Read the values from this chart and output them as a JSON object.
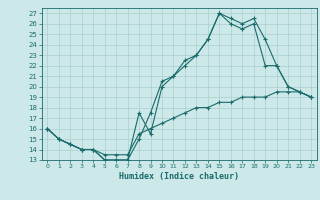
{
  "xlabel": "Humidex (Indice chaleur)",
  "xlim": [
    -0.5,
    23.5
  ],
  "ylim": [
    13,
    27.5
  ],
  "xticks": [
    0,
    1,
    2,
    3,
    4,
    5,
    6,
    7,
    8,
    9,
    10,
    11,
    12,
    13,
    14,
    15,
    16,
    17,
    18,
    19,
    20,
    21,
    22,
    23
  ],
  "yticks": [
    13,
    14,
    15,
    16,
    17,
    18,
    19,
    20,
    21,
    22,
    23,
    24,
    25,
    26,
    27
  ],
  "bg_color": "#cce8e8",
  "grid_color": "#aacfcf",
  "line_color": "#1a6b6b",
  "line1_x": [
    0,
    1,
    2,
    3,
    4,
    5,
    6,
    7,
    8,
    9,
    10,
    11,
    12,
    13,
    14,
    15,
    16,
    17,
    18,
    19,
    20,
    21,
    22,
    23
  ],
  "line1_y": [
    16,
    15,
    14.5,
    14,
    14,
    13,
    13,
    13,
    15,
    17.5,
    20.5,
    21,
    22,
    23,
    24.5,
    27,
    26.5,
    26,
    26.5,
    24.5,
    22,
    20,
    19.5,
    19
  ],
  "line2_x": [
    0,
    1,
    2,
    3,
    4,
    5,
    6,
    7,
    8,
    9,
    10,
    11,
    12,
    13,
    14,
    15,
    16,
    17,
    18,
    19,
    20,
    21,
    22,
    23
  ],
  "line2_y": [
    16,
    15,
    14.5,
    14,
    14,
    13.5,
    13.5,
    13.5,
    15.5,
    16,
    16.5,
    17,
    17.5,
    18,
    18,
    18.5,
    18.5,
    19,
    19,
    19,
    19.5,
    19.5,
    19.5,
    19
  ],
  "line3_x": [
    0,
    1,
    2,
    3,
    4,
    5,
    6,
    7,
    8,
    9,
    10,
    11,
    12,
    13,
    14,
    15,
    16,
    17,
    18,
    19,
    20,
    21,
    22,
    23
  ],
  "line3_y": [
    16,
    15,
    14.5,
    14,
    14,
    13,
    13,
    13,
    17.5,
    15.5,
    20,
    21,
    22.5,
    23,
    24.5,
    27,
    26,
    25.5,
    26,
    22,
    22,
    20,
    19.5,
    19
  ]
}
